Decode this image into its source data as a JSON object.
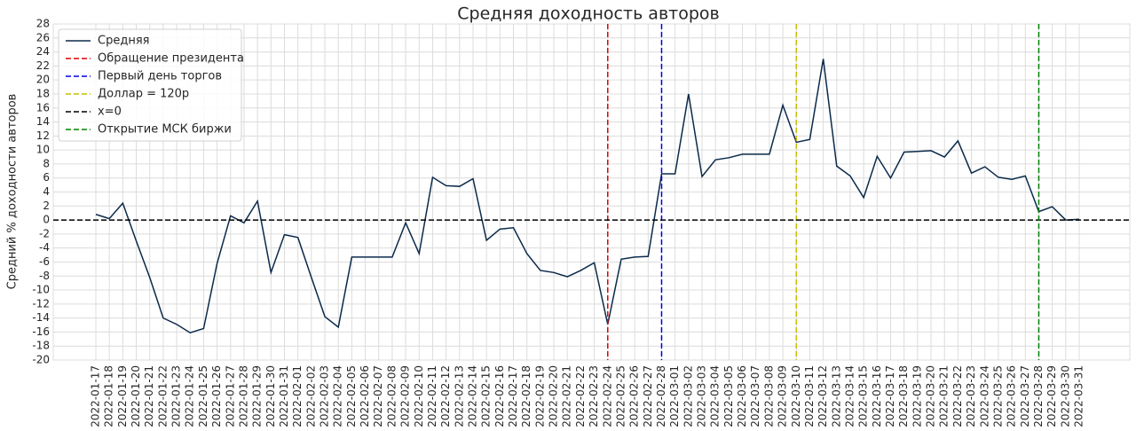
{
  "chart_data": {
    "type": "line",
    "title": "Средняя доходность авторов",
    "y_label": "Средний % доходности авторов",
    "categories": [
      "2022-01-17",
      "2022-01-18",
      "2022-01-19",
      "2022-01-20",
      "2022-01-21",
      "2022-01-22",
      "2022-01-23",
      "2022-01-24",
      "2022-01-25",
      "2022-01-26",
      "2022-01-27",
      "2022-01-28",
      "2022-01-29",
      "2022-01-30",
      "2022-01-31",
      "2022-02-01",
      "2022-02-02",
      "2022-02-03",
      "2022-02-04",
      "2022-02-05",
      "2022-02-06",
      "2022-02-07",
      "2022-02-08",
      "2022-02-09",
      "2022-02-10",
      "2022-02-11",
      "2022-02-12",
      "2022-02-13",
      "2022-02-14",
      "2022-02-15",
      "2022-02-16",
      "2022-02-17",
      "2022-02-18",
      "2022-02-19",
      "2022-02-20",
      "2022-02-21",
      "2022-02-22",
      "2022-02-23",
      "2022-02-24",
      "2022-02-25",
      "2022-02-26",
      "2022-02-27",
      "2022-02-28",
      "2022-03-01",
      "2022-03-02",
      "2022-03-03",
      "2022-03-04",
      "2022-03-05",
      "2022-03-06",
      "2022-03-07",
      "2022-03-08",
      "2022-03-09",
      "2022-03-10",
      "2022-03-11",
      "2022-03-12",
      "2022-03-13",
      "2022-03-14",
      "2022-03-15",
      "2022-03-16",
      "2022-03-17",
      "2022-03-18",
      "2022-03-19",
      "2022-03-20",
      "2022-03-21",
      "2022-03-22",
      "2022-03-23",
      "2022-03-24",
      "2022-03-25",
      "2022-03-26",
      "2022-03-27",
      "2022-03-28",
      "2022-03-29",
      "2022-03-30",
      "2022-03-31"
    ],
    "series": [
      {
        "name": "Средняя",
        "color": "#0b2a4a",
        "values": [
          0.8,
          0.2,
          2.4,
          -3,
          -8.2,
          -14,
          -14.9,
          -16.1,
          -15.5,
          -6.2,
          0.6,
          -0.4,
          2.7,
          -7.5,
          -2.1,
          -2.5,
          -8.2,
          -13.8,
          -15.3,
          -5.3,
          -5.3,
          -5.3,
          -5.3,
          -0.4,
          -4.8,
          6.1,
          4.9,
          4.8,
          5.9,
          -2.9,
          -1.3,
          -1.1,
          -4.8,
          -7.2,
          -7.5,
          -8.1,
          -7.2,
          -6.1,
          -14.9,
          -5.6,
          -5.3,
          -5.2,
          6.6,
          6.6,
          18,
          6.2,
          8.6,
          8.9,
          9.4,
          9.4,
          9.4,
          16.4,
          11.1,
          11.5,
          23,
          7.7,
          6.3,
          3.2,
          9.1,
          6,
          9.7,
          9.8,
          9.9,
          9,
          11.3,
          6.7,
          7.6,
          6.1,
          5.8,
          6.3,
          1.2,
          1.9,
          0,
          0.1
        ]
      }
    ],
    "reference_lines": [
      {
        "name": "Обращение президента",
        "color": "#e00000",
        "x": "2022-02-24"
      },
      {
        "name": "Первый день торгов",
        "color": "#0000e0",
        "x": "2022-02-28"
      },
      {
        "name": "Доллар = 120р",
        "color": "#c4c000",
        "x": "2022-03-10"
      },
      {
        "name": "x=0",
        "color": "#000000",
        "y": 0
      },
      {
        "name": "Открытие МСК биржи",
        "color": "#008000",
        "x": "2022-03-28"
      }
    ],
    "ylim": [
      -20,
      28
    ],
    "yticks": [
      -20,
      -18,
      -16,
      -14,
      -12,
      -10,
      -8,
      -6,
      -4,
      -2,
      0,
      2,
      4,
      6,
      8,
      10,
      12,
      14,
      16,
      18,
      20,
      22,
      24,
      26,
      28
    ],
    "grid": true,
    "legend": "upper left"
  }
}
